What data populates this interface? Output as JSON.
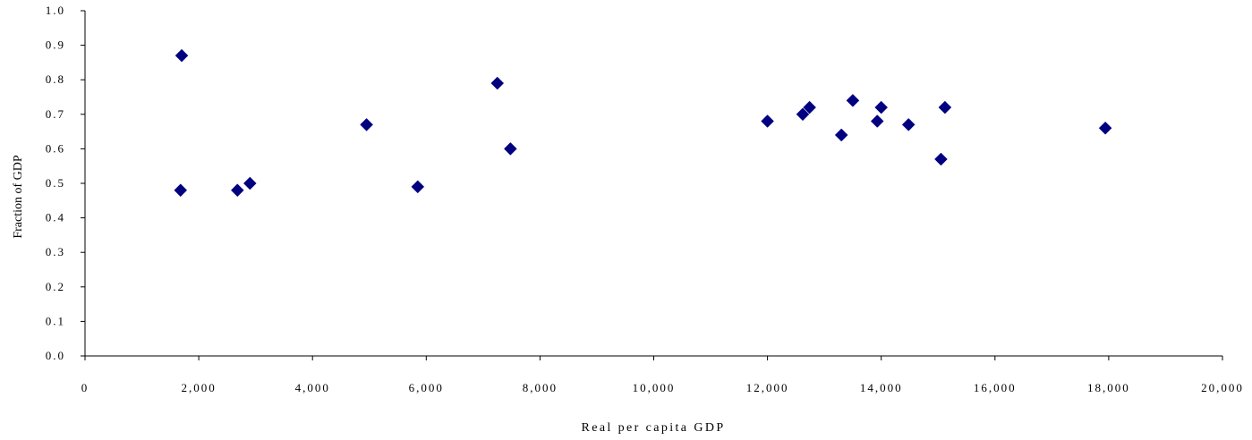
{
  "chart_data": {
    "type": "scatter",
    "title": "",
    "xlabel": "Real per capita GDP",
    "ylabel": "Fraction of GDP",
    "xlim": [
      0,
      20000
    ],
    "ylim": [
      0,
      1.0
    ],
    "x_ticks": [
      "0",
      "2,000",
      "4,000",
      "6,000",
      "8,000",
      "10,000",
      "12,000",
      "14,000",
      "16,000",
      "18,000",
      "20,000"
    ],
    "y_ticks": [
      "0.0",
      "0.1",
      "0.2",
      "0.3",
      "0.4",
      "0.5",
      "0.6",
      "0.7",
      "0.8",
      "0.9",
      "1.0"
    ],
    "grid": false,
    "legend": "none",
    "marker": "diamond",
    "marker_color": "#000080",
    "series": [
      {
        "points": [
          {
            "x": 1700,
            "y": 0.87
          },
          {
            "x": 1680,
            "y": 0.48
          },
          {
            "x": 2680,
            "y": 0.48
          },
          {
            "x": 2900,
            "y": 0.5
          },
          {
            "x": 4950,
            "y": 0.67
          },
          {
            "x": 5850,
            "y": 0.49
          },
          {
            "x": 7250,
            "y": 0.79
          },
          {
            "x": 7480,
            "y": 0.6
          },
          {
            "x": 12000,
            "y": 0.68
          },
          {
            "x": 12620,
            "y": 0.7
          },
          {
            "x": 12740,
            "y": 0.72
          },
          {
            "x": 13300,
            "y": 0.64
          },
          {
            "x": 13500,
            "y": 0.74
          },
          {
            "x": 13930,
            "y": 0.68
          },
          {
            "x": 14000,
            "y": 0.72
          },
          {
            "x": 14480,
            "y": 0.67
          },
          {
            "x": 15050,
            "y": 0.57
          },
          {
            "x": 15120,
            "y": 0.72
          },
          {
            "x": 17940,
            "y": 0.66
          }
        ]
      }
    ]
  }
}
